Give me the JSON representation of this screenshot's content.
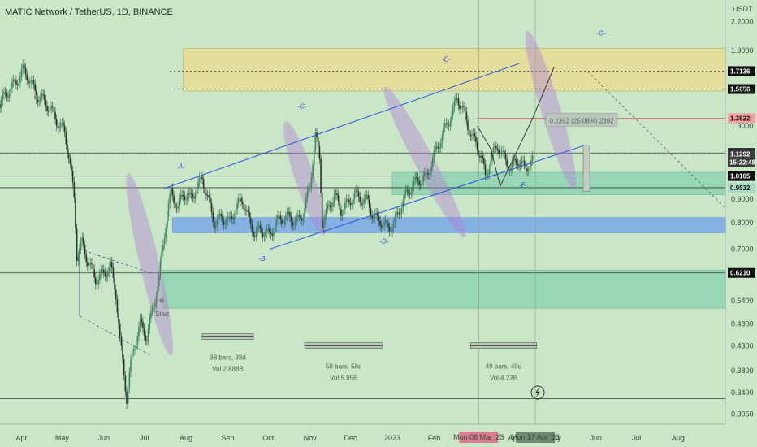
{
  "chart_data": {
    "type": "candlestick",
    "title": "MATIC Network / TetherUS, 1D, BINANCE",
    "currency_label": "USDT",
    "y_scale": "log",
    "ylim": [
      0.29,
      2.45
    ],
    "xlim": [
      "2022-03-16",
      "2023-09-05"
    ],
    "x_ticks": [
      {
        "date": "2022-04-01",
        "label": "Apr"
      },
      {
        "date": "2022-05-01",
        "label": "May"
      },
      {
        "date": "2022-06-01",
        "label": "Jun"
      },
      {
        "date": "2022-07-01",
        "label": "Jul"
      },
      {
        "date": "2022-08-01",
        "label": "Aug"
      },
      {
        "date": "2022-09-01",
        "label": "Sep"
      },
      {
        "date": "2022-10-01",
        "label": "Oct"
      },
      {
        "date": "2022-11-01",
        "label": "Nov"
      },
      {
        "date": "2022-12-01",
        "label": "Dec"
      },
      {
        "date": "2023-01-01",
        "label": "2023"
      },
      {
        "date": "2023-02-01",
        "label": "Feb"
      },
      {
        "date": "2023-04-01",
        "label": "Apr"
      },
      {
        "date": "2023-05-01",
        "label": "May"
      },
      {
        "date": "2023-06-01",
        "label": "Jun"
      },
      {
        "date": "2023-07-01",
        "label": "Jul"
      },
      {
        "date": "2023-08-01",
        "label": "Aug"
      }
    ],
    "y_ticks": [
      2.2,
      1.9,
      1.55,
      1.3,
      0.9,
      0.8,
      0.7,
      0.54,
      0.48,
      0.43,
      0.38,
      0.34,
      0.305
    ],
    "y_tick_labels": [
      "2.2000",
      "1.9000",
      "1.5500",
      "1.3000",
      "0.9000",
      "0.8000",
      "0.7000",
      "0.5400",
      "0.4800",
      "0.4300",
      "0.3800",
      "0.3400",
      "0.3050"
    ],
    "price_series": {
      "name": "",
      "points": [
        [
          "2022-03-16",
          1.45
        ],
        [
          "2022-03-22",
          1.55
        ],
        [
          "2022-03-28",
          1.62
        ],
        [
          "2022-04-02",
          1.72
        ],
        [
          "2022-04-06",
          1.66
        ],
        [
          "2022-04-12",
          1.52
        ],
        [
          "2022-04-17",
          1.48
        ],
        [
          "2022-04-22",
          1.42
        ],
        [
          "2022-04-28",
          1.32
        ],
        [
          "2022-05-03",
          1.26
        ],
        [
          "2022-05-06",
          1.12
        ],
        [
          "2022-05-10",
          0.9
        ],
        [
          "2022-05-12",
          0.68
        ],
        [
          "2022-05-16",
          0.72
        ],
        [
          "2022-05-20",
          0.66
        ],
        [
          "2022-05-26",
          0.6
        ],
        [
          "2022-06-01",
          0.62
        ],
        [
          "2022-06-06",
          0.64
        ],
        [
          "2022-06-10",
          0.56
        ],
        [
          "2022-06-13",
          0.44
        ],
        [
          "2022-06-18",
          0.33
        ],
        [
          "2022-06-22",
          0.41
        ],
        [
          "2022-06-28",
          0.48
        ],
        [
          "2022-07-03",
          0.45
        ],
        [
          "2022-07-08",
          0.53
        ],
        [
          "2022-07-12",
          0.6
        ],
        [
          "2022-07-17",
          0.8
        ],
        [
          "2022-07-21",
          0.93
        ],
        [
          "2022-07-26",
          0.86
        ],
        [
          "2022-07-30",
          0.93
        ],
        [
          "2022-08-04",
          0.9
        ],
        [
          "2022-08-09",
          0.95
        ],
        [
          "2022-08-13",
          1.0
        ],
        [
          "2022-08-18",
          0.88
        ],
        [
          "2022-08-22",
          0.8
        ],
        [
          "2022-08-28",
          0.82
        ],
        [
          "2022-09-02",
          0.8
        ],
        [
          "2022-09-07",
          0.86
        ],
        [
          "2022-09-12",
          0.9
        ],
        [
          "2022-09-17",
          0.8
        ],
        [
          "2022-09-21",
          0.76
        ],
        [
          "2022-09-26",
          0.77
        ],
        [
          "2022-10-02",
          0.75
        ],
        [
          "2022-10-07",
          0.8
        ],
        [
          "2022-10-12",
          0.82
        ],
        [
          "2022-10-17",
          0.82
        ],
        [
          "2022-10-22",
          0.8
        ],
        [
          "2022-10-27",
          0.84
        ],
        [
          "2022-11-01",
          0.96
        ],
        [
          "2022-11-05",
          1.24
        ],
        [
          "2022-11-08",
          1.1
        ],
        [
          "2022-11-10",
          0.8
        ],
        [
          "2022-11-14",
          0.85
        ],
        [
          "2022-11-19",
          0.92
        ],
        [
          "2022-11-24",
          0.85
        ],
        [
          "2022-11-29",
          0.88
        ],
        [
          "2022-12-04",
          0.92
        ],
        [
          "2022-12-09",
          0.9
        ],
        [
          "2022-12-14",
          0.89
        ],
        [
          "2022-12-18",
          0.82
        ],
        [
          "2022-12-23",
          0.81
        ],
        [
          "2022-12-28",
          0.78
        ],
        [
          "2023-01-02",
          0.79
        ],
        [
          "2023-01-08",
          0.88
        ],
        [
          "2023-01-14",
          0.95
        ],
        [
          "2023-01-20",
          0.99
        ],
        [
          "2023-01-26",
          1.0
        ],
        [
          "2023-01-31",
          1.1
        ],
        [
          "2023-02-05",
          1.2
        ],
        [
          "2023-02-10",
          1.3
        ],
        [
          "2023-02-15",
          1.4
        ],
        [
          "2023-02-18",
          1.5
        ],
        [
          "2023-02-22",
          1.42
        ],
        [
          "2023-02-26",
          1.3
        ],
        [
          "2023-03-03",
          1.2
        ],
        [
          "2023-03-08",
          1.12
        ],
        [
          "2023-03-11",
          1.0
        ],
        [
          "2023-03-15",
          1.1
        ],
        [
          "2023-03-20",
          1.18
        ],
        [
          "2023-03-25",
          1.1
        ],
        [
          "2023-03-30",
          1.05
        ],
        [
          "2023-04-04",
          1.1
        ],
        [
          "2023-04-09",
          1.05
        ],
        [
          "2023-04-14",
          1.08
        ],
        [
          "2023-04-17",
          1.1
        ]
      ]
    },
    "horizontal_lines": [
      {
        "value": 1.7136,
        "label": "1.7136",
        "style": "dotted"
      },
      {
        "value": 1.5656,
        "label": "1.5656",
        "style": "dotted"
      },
      {
        "value": 1.3522,
        "label": "1.3522",
        "style": "solid-red"
      },
      {
        "value": 1.135,
        "label": "1.1350",
        "style": "solid"
      },
      {
        "value": 1.0105,
        "label": "1.0105",
        "style": "solid"
      },
      {
        "value": 0.9532,
        "label": "0.9532",
        "style": "solid"
      },
      {
        "value": 0.621,
        "label": "0.6210",
        "style": "solid"
      },
      {
        "value": 0.33,
        "label": "",
        "style": "solid"
      }
    ],
    "current_price": {
      "value": 1.1292,
      "label": "1.1292",
      "countdown": "15:22:48"
    },
    "zones": [
      {
        "y1": 1.55,
        "y2": 1.92,
        "x1": "2022-07-30",
        "x2": "2023-09-05",
        "kind": "yellow"
      },
      {
        "y1": 0.92,
        "y2": 1.03,
        "x1": "2023-01-01",
        "x2": "2023-09-05",
        "kind": "green"
      },
      {
        "y1": 0.76,
        "y2": 0.82,
        "x1": "2022-07-22",
        "x2": "2023-09-05",
        "kind": "blue"
      },
      {
        "y1": 0.52,
        "y2": 0.63,
        "x1": "2022-07-15",
        "x2": "2023-09-05",
        "kind": "green"
      }
    ],
    "trend_lines": [
      {
        "from": [
          "2022-07-16",
          0.95
        ],
        "to": [
          "2023-04-05",
          1.78
        ]
      },
      {
        "from": [
          "2022-10-02",
          0.7
        ],
        "to": [
          "2023-05-24",
          1.18
        ]
      }
    ],
    "projection_path": [
      [
        "2023-03-05",
        1.3
      ],
      [
        "2023-03-15",
        1.16
      ],
      [
        "2023-03-22",
        0.96
      ],
      [
        "2023-04-15",
        1.35
      ],
      [
        "2023-05-01",
        1.75
      ]
    ],
    "waves": [
      {
        "label": "-A-",
        "x": "2022-07-28",
        "y": 1.05
      },
      {
        "label": "-B-",
        "x": "2022-09-27",
        "y": 0.66
      },
      {
        "label": "-C-",
        "x": "2022-10-26",
        "y": 1.42
      },
      {
        "label": "-D-",
        "x": "2022-12-26",
        "y": 0.72
      },
      {
        "label": "-E-",
        "x": "2023-02-10",
        "y": 1.8
      },
      {
        "label": "-F-",
        "x": "2023-04-08",
        "y": 0.955
      },
      {
        "label": "-G-",
        "x": "2023-06-05",
        "y": 2.05
      }
    ],
    "start_label": {
      "text": "Start",
      "x": "2022-07-14",
      "y": 0.5
    },
    "measurements": [
      {
        "text_bars": "38 bars, 38d",
        "text_vol": "Vol 2.888B",
        "x1": "2022-08-13",
        "x2": "2022-09-20",
        "y": 0.45
      },
      {
        "text_bars": "58 bars, 58d",
        "text_vol": "Vol 5.95B",
        "x1": "2022-10-28",
        "x2": "2022-12-25",
        "y": 0.43
      },
      {
        "text_bars": "49 bars, 49d",
        "text_vol": "Vol 4.23B",
        "x1": "2023-02-28",
        "x2": "2023-04-18",
        "y": 0.43
      }
    ],
    "range_box": {
      "text": "0.2392 (25.08%) 2392",
      "x": "2023-05-25",
      "y1": 0.935,
      "y2": 1.18
    },
    "x_highlight_labels": [
      "Mon 06 Mar '23",
      "Mon 17 Apr '23"
    ]
  }
}
